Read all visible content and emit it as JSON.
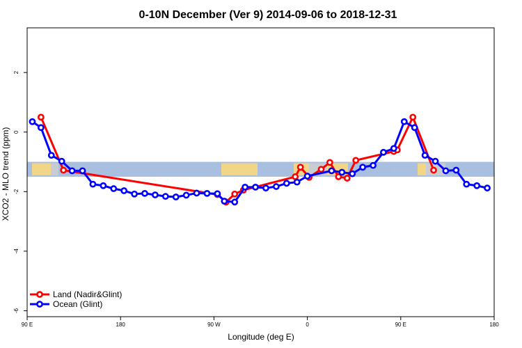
{
  "chart_data": {
    "type": "line",
    "title": "0-10N December (Ver 9)   2014-09-06 to 2018-12-31",
    "xlabel": "Longitude (deg E)",
    "ylabel": "XCO2 - MLO trend (ppm)",
    "xlim": [
      -90,
      180
    ],
    "ylim": [
      -6.2,
      3.5
    ],
    "x_ticks": [
      {
        "value": -90,
        "label": "90 E"
      },
      {
        "value": -36,
        "label": "180"
      },
      {
        "value": 18,
        "label": "90 W"
      },
      {
        "value": 72,
        "label": "0"
      },
      {
        "value": 126,
        "label": "90 E"
      },
      {
        "value": 180,
        "label": "180"
      }
    ],
    "y_ticks": [
      {
        "value": -6,
        "label": "-6"
      },
      {
        "value": -4,
        "label": "-4"
      },
      {
        "value": -2,
        "label": "-2"
      },
      {
        "value": 0,
        "label": "0"
      },
      {
        "value": 2,
        "label": "2"
      }
    ],
    "map_band": {
      "ymin": -1.5,
      "ymax": -1.0
    },
    "series": [
      {
        "name": "Land (Nadir&Glint)",
        "color": "#ff0000",
        "points": [
          {
            "x": -82,
            "y": 0.5
          },
          {
            "x": -69,
            "y": -1.28
          },
          {
            "x": 20,
            "y": -2.1
          },
          {
            "x": 25,
            "y": -2.35
          },
          {
            "x": 30,
            "y": -2.08
          },
          {
            "x": 35,
            "y": -1.95
          },
          {
            "x": 65,
            "y": -1.5
          },
          {
            "x": 68,
            "y": -1.18
          },
          {
            "x": 73,
            "y": -1.52
          },
          {
            "x": 80,
            "y": -1.25
          },
          {
            "x": 85,
            "y": -1.02
          },
          {
            "x": 90,
            "y": -1.5
          },
          {
            "x": 95,
            "y": -1.55
          },
          {
            "x": 100,
            "y": -0.95
          },
          {
            "x": 122,
            "y": -0.65
          },
          {
            "x": 124,
            "y": -0.6
          },
          {
            "x": 133,
            "y": 0.5
          },
          {
            "x": 145,
            "y": -1.28
          }
        ]
      },
      {
        "name": "Ocean (Glint)",
        "color": "#0000ff",
        "points": [
          {
            "x": -87,
            "y": 0.35
          },
          {
            "x": -82,
            "y": 0.15
          },
          {
            "x": -76,
            "y": -0.78
          },
          {
            "x": -70,
            "y": -0.98
          },
          {
            "x": -64,
            "y": -1.3
          },
          {
            "x": -58,
            "y": -1.3
          },
          {
            "x": -52,
            "y": -1.75
          },
          {
            "x": -46,
            "y": -1.8
          },
          {
            "x": -40,
            "y": -1.9
          },
          {
            "x": -34,
            "y": -1.97
          },
          {
            "x": -28,
            "y": -2.08
          },
          {
            "x": -22,
            "y": -2.06
          },
          {
            "x": -16,
            "y": -2.11
          },
          {
            "x": -10,
            "y": -2.16
          },
          {
            "x": -4,
            "y": -2.18
          },
          {
            "x": 2,
            "y": -2.12
          },
          {
            "x": 8,
            "y": -2.05
          },
          {
            "x": 14,
            "y": -2.06
          },
          {
            "x": 20,
            "y": -2.07
          },
          {
            "x": 24,
            "y": -2.32
          },
          {
            "x": 30,
            "y": -2.35
          },
          {
            "x": 36,
            "y": -1.85
          },
          {
            "x": 42,
            "y": -1.85
          },
          {
            "x": 48,
            "y": -1.88
          },
          {
            "x": 54,
            "y": -1.83
          },
          {
            "x": 60,
            "y": -1.72
          },
          {
            "x": 66,
            "y": -1.68
          },
          {
            "x": 72,
            "y": -1.48
          },
          {
            "x": 86,
            "y": -1.3
          },
          {
            "x": 92,
            "y": -1.35
          },
          {
            "x": 98,
            "y": -1.4
          },
          {
            "x": 104,
            "y": -1.18
          },
          {
            "x": 110,
            "y": -1.12
          },
          {
            "x": 116,
            "y": -0.68
          },
          {
            "x": 122,
            "y": -0.55
          },
          {
            "x": 128,
            "y": 0.35
          },
          {
            "x": 134,
            "y": 0.15
          },
          {
            "x": 140,
            "y": -0.78
          },
          {
            "x": 146,
            "y": -0.98
          },
          {
            "x": 152,
            "y": -1.3
          },
          {
            "x": 158,
            "y": -1.28
          },
          {
            "x": 164,
            "y": -1.75
          },
          {
            "x": 170,
            "y": -1.8
          },
          {
            "x": 176,
            "y": -1.88
          }
        ]
      }
    ]
  }
}
